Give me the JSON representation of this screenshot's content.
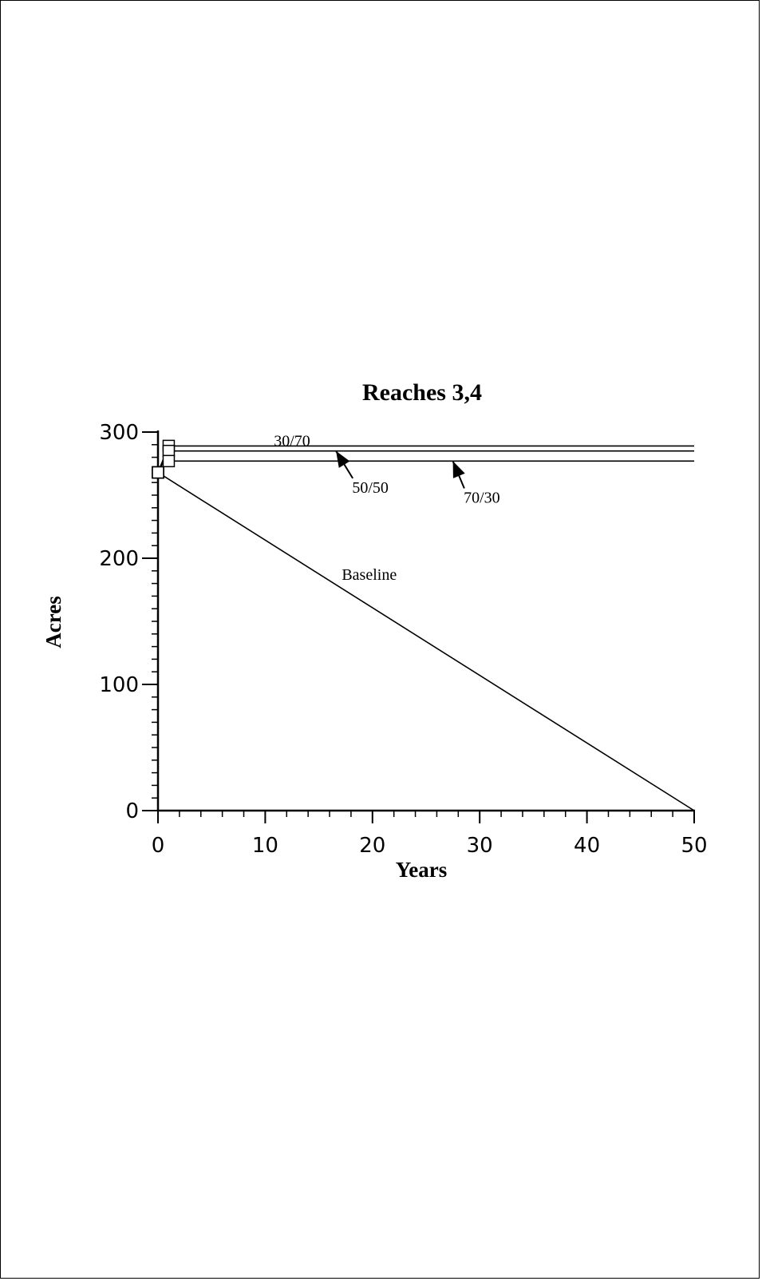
{
  "chart_data": {
    "type": "line",
    "title": "Reaches  3,4",
    "xlabel": "Years",
    "ylabel": "Acres",
    "xlim": [
      0,
      50
    ],
    "ylim": [
      0,
      300
    ],
    "xticks": [
      0,
      10,
      20,
      30,
      40,
      50
    ],
    "yticks": [
      0,
      100,
      200,
      300
    ],
    "x_minor_step": 2,
    "y_minor_step": 10,
    "grid": false,
    "legend": "none",
    "series": [
      {
        "name": "30/70",
        "marker": "square",
        "points": [
          [
            0,
            268
          ],
          [
            1,
            289
          ],
          [
            50,
            289
          ]
        ]
      },
      {
        "name": "50/50",
        "marker": "square",
        "points": [
          [
            0,
            268
          ],
          [
            1,
            285
          ],
          [
            50,
            285
          ]
        ]
      },
      {
        "name": "70/30",
        "marker": "square",
        "points": [
          [
            0,
            268
          ],
          [
            1,
            277
          ],
          [
            50,
            277
          ]
        ]
      },
      {
        "name": "Baseline",
        "marker": "square",
        "points": [
          [
            0,
            268
          ],
          [
            50,
            0
          ]
        ]
      }
    ],
    "annotations": [
      {
        "text": "30/70",
        "x": 12.5,
        "y": 289,
        "arrow": false
      },
      {
        "text": "50/50",
        "x": 19.8,
        "y": 252,
        "arrow_to": [
          16.6,
          285
        ]
      },
      {
        "text": "70/30",
        "x": 30.2,
        "y": 244,
        "arrow_to": [
          27.5,
          277
        ]
      },
      {
        "text": "Baseline",
        "x": 19.7,
        "y": 183,
        "arrow": false
      }
    ]
  }
}
